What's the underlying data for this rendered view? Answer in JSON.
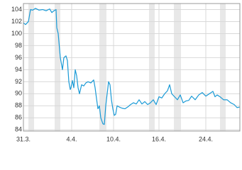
{
  "chart_data": {
    "type": "line",
    "x": [
      0,
      3,
      7,
      10,
      13,
      17,
      22,
      27,
      32,
      37,
      40,
      43,
      46,
      47,
      49,
      52,
      55,
      57,
      60,
      62,
      64,
      66,
      67,
      69,
      71,
      73,
      75,
      77,
      79,
      82,
      85,
      88,
      91,
      95,
      99,
      101,
      103,
      105,
      107,
      109,
      112,
      114,
      116,
      118,
      120,
      122,
      124,
      126,
      128,
      130,
      132,
      135,
      139,
      143,
      147,
      151,
      155,
      159,
      163,
      167,
      171,
      175,
      179,
      183,
      187,
      191,
      195,
      199,
      203,
      206,
      209,
      213,
      217,
      221,
      225,
      229,
      233,
      237,
      242,
      247,
      252,
      257,
      262,
      267,
      270,
      273,
      277,
      282,
      287,
      292,
      297,
      301,
      305
    ],
    "series": [
      {
        "color": "#1a9ad6",
        "values": [
          101.8,
          101.5,
          102,
          104,
          103.9,
          104.2,
          103.9,
          104,
          103.8,
          104.1,
          103.5,
          103.8,
          104,
          101,
          100,
          96,
          94,
          96,
          96.3,
          95.5,
          92,
          90.7,
          91,
          92.2,
          91,
          94,
          93,
          91,
          90,
          91.5,
          91.3,
          91.8,
          92,
          91.8,
          92.3,
          91,
          89.2,
          87.5,
          88,
          86,
          85,
          84.9,
          88,
          90,
          92,
          91.5,
          89,
          87.5,
          86.4,
          86.6,
          88,
          87.8,
          87.6,
          87.5,
          87.8,
          88.2,
          88.5,
          88.3,
          89,
          88.3,
          88.7,
          88.2,
          88.5,
          89,
          88.2,
          89.5,
          89.3,
          90,
          90.5,
          91.5,
          90,
          89.5,
          89,
          89.8,
          88.5,
          88.8,
          88.9,
          89.6,
          89,
          89.8,
          90.2,
          89.6,
          90,
          90.4,
          89.5,
          89.8,
          89.5,
          89,
          89,
          88.5,
          88.2,
          87.7,
          87.8
        ]
      }
    ],
    "bands": [
      [
        7,
        15
      ],
      [
        44,
        52
      ],
      [
        107,
        117
      ],
      [
        177,
        185
      ],
      [
        212,
        222
      ],
      [
        277,
        285
      ]
    ],
    "band_color": "#e8e8e8",
    "xlim": [
      0,
      305
    ],
    "xticks": [
      {
        "value": 0,
        "label": "31.3."
      },
      {
        "value": 68,
        "label": "4.4."
      },
      {
        "value": 127,
        "label": "10.4."
      },
      {
        "value": 191,
        "label": "16.4."
      },
      {
        "value": 257,
        "label": "24.4."
      }
    ],
    "ylim": [
      83.8,
      105
    ],
    "yticks": [
      84,
      86,
      88,
      90,
      92,
      94,
      96,
      98,
      100,
      102,
      104
    ],
    "grid": true
  }
}
